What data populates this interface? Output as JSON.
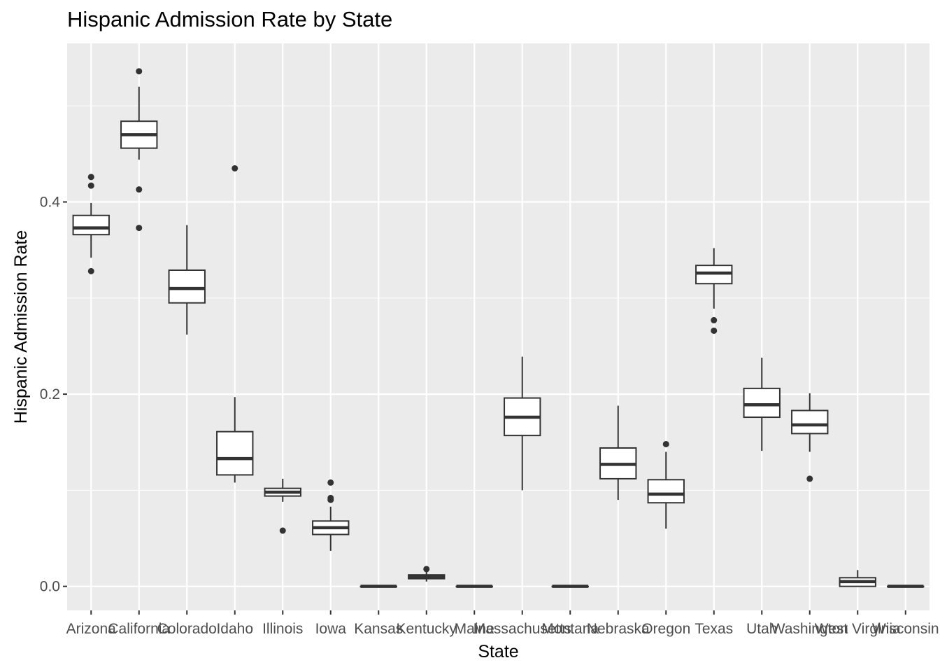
{
  "chart_data": {
    "type": "boxplot",
    "title": "Hispanic Admission Rate by State",
    "xlabel": "State",
    "ylabel": "Hispanic Admission Rate",
    "ylim": [
      -0.025,
      0.565
    ],
    "yticks": [
      0.0,
      0.2,
      0.4
    ],
    "ytick_labels": [
      "0.0",
      "0.2",
      "0.4"
    ],
    "grid": true,
    "colors": {
      "panel": "#ebebeb",
      "grid": "#ffffff",
      "box_fill": "#ffffff",
      "box_line": "#333333",
      "outlier": "#333333"
    },
    "categories": [
      "Arizona",
      "California",
      "Colorado",
      "Idaho",
      "Illinois",
      "Iowa",
      "Kansas",
      "Kentucky",
      "Maine",
      "Massachusetts",
      "Montana",
      "Nebraska",
      "Oregon",
      "Texas",
      "Utah",
      "Washington",
      "West Virginia",
      "Wisconsin"
    ],
    "boxes": [
      {
        "category": "Arizona",
        "whisker_low": 0.342,
        "q1": 0.366,
        "median": 0.373,
        "q3": 0.386,
        "whisker_high": 0.399,
        "outliers": [
          0.328,
          0.417,
          0.426
        ]
      },
      {
        "category": "California",
        "whisker_low": 0.444,
        "q1": 0.456,
        "median": 0.47,
        "q3": 0.484,
        "whisker_high": 0.52,
        "outliers": [
          0.373,
          0.413,
          0.536
        ]
      },
      {
        "category": "Colorado",
        "whisker_low": 0.262,
        "q1": 0.295,
        "median": 0.31,
        "q3": 0.329,
        "whisker_high": 0.376,
        "outliers": []
      },
      {
        "category": "Idaho",
        "whisker_low": 0.108,
        "q1": 0.116,
        "median": 0.133,
        "q3": 0.161,
        "whisker_high": 0.197,
        "outliers": [
          0.435
        ]
      },
      {
        "category": "Illinois",
        "whisker_low": 0.088,
        "q1": 0.094,
        "median": 0.098,
        "q3": 0.102,
        "whisker_high": 0.112,
        "outliers": [
          0.058
        ]
      },
      {
        "category": "Iowa",
        "whisker_low": 0.037,
        "q1": 0.054,
        "median": 0.061,
        "q3": 0.068,
        "whisker_high": 0.083,
        "outliers": [
          0.09,
          0.092,
          0.108
        ]
      },
      {
        "category": "Kansas",
        "whisker_low": 0.0,
        "q1": 0.0,
        "median": 0.0,
        "q3": 0.0,
        "whisker_high": 0.0,
        "outliers": []
      },
      {
        "category": "Kentucky",
        "whisker_low": 0.005,
        "q1": 0.008,
        "median": 0.01,
        "q3": 0.012,
        "whisker_high": 0.015,
        "outliers": [
          0.018
        ]
      },
      {
        "category": "Maine",
        "whisker_low": 0.0,
        "q1": 0.0,
        "median": 0.0,
        "q3": 0.0,
        "whisker_high": 0.0,
        "outliers": []
      },
      {
        "category": "Massachusetts",
        "whisker_low": 0.1,
        "q1": 0.157,
        "median": 0.176,
        "q3": 0.196,
        "whisker_high": 0.239,
        "outliers": []
      },
      {
        "category": "Montana",
        "whisker_low": 0.0,
        "q1": 0.0,
        "median": 0.0,
        "q3": 0.0,
        "whisker_high": 0.0,
        "outliers": []
      },
      {
        "category": "Nebraska",
        "whisker_low": 0.09,
        "q1": 0.112,
        "median": 0.127,
        "q3": 0.144,
        "whisker_high": 0.188,
        "outliers": []
      },
      {
        "category": "Oregon",
        "whisker_low": 0.06,
        "q1": 0.087,
        "median": 0.096,
        "q3": 0.111,
        "whisker_high": 0.14,
        "outliers": [
          0.148
        ]
      },
      {
        "category": "Texas",
        "whisker_low": 0.289,
        "q1": 0.315,
        "median": 0.326,
        "q3": 0.334,
        "whisker_high": 0.352,
        "outliers": [
          0.266,
          0.277
        ]
      },
      {
        "category": "Utah",
        "whisker_low": 0.141,
        "q1": 0.176,
        "median": 0.189,
        "q3": 0.206,
        "whisker_high": 0.238,
        "outliers": []
      },
      {
        "category": "Washington",
        "whisker_low": 0.14,
        "q1": 0.159,
        "median": 0.168,
        "q3": 0.183,
        "whisker_high": 0.201,
        "outliers": [
          0.112
        ]
      },
      {
        "category": "West Virginia",
        "whisker_low": 0.0,
        "q1": 0.0,
        "median": 0.005,
        "q3": 0.009,
        "whisker_high": 0.017,
        "outliers": []
      },
      {
        "category": "Wisconsin",
        "whisker_low": 0.0,
        "q1": 0.0,
        "median": 0.0,
        "q3": 0.0,
        "whisker_high": 0.0,
        "outliers": []
      }
    ]
  }
}
